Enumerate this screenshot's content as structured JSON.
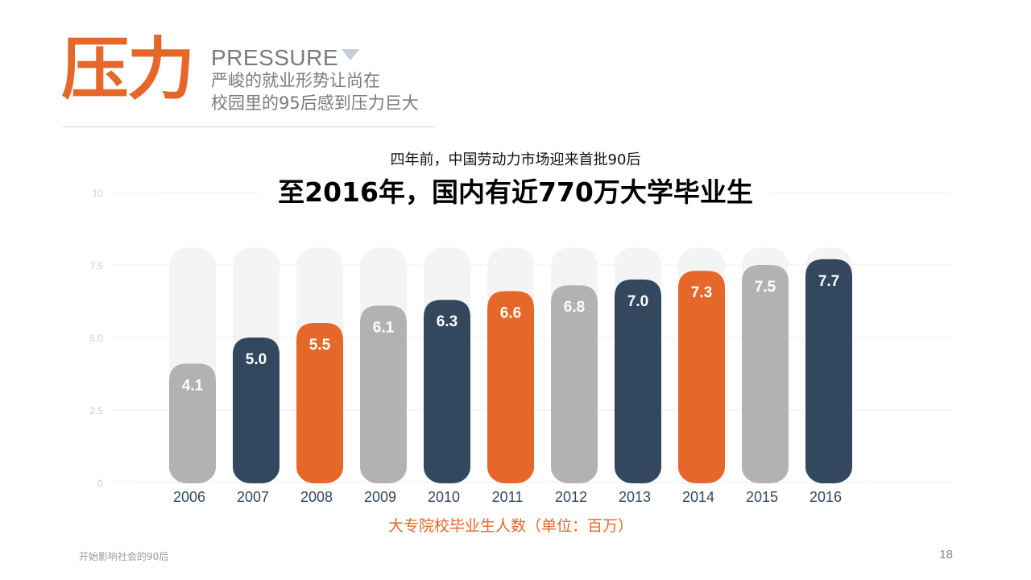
{
  "header": {
    "hero_title": "压力",
    "subtitle_en": "PRESSURE",
    "subtitle_cn_line1": "严峻的就业形势让尚在",
    "subtitle_cn_line2": "校园里的95后感到压力巨大"
  },
  "chart_data": {
    "type": "bar",
    "pretitle": "四年前，中国劳动力市场迎来首批90后",
    "title": "至2016年，国内有近770万大学毕业生",
    "xlabel": "大专院校毕业生人数（单位：百万）",
    "ylabel": "",
    "ylim": [
      0,
      10
    ],
    "yticks": [
      "0",
      "2.5",
      "5.0",
      "7.5",
      "10"
    ],
    "categories": [
      "2006",
      "2007",
      "2008",
      "2009",
      "2010",
      "2011",
      "2012",
      "2013",
      "2014",
      "2015",
      "2016"
    ],
    "values": [
      4.1,
      5.0,
      5.5,
      6.1,
      6.3,
      6.6,
      6.8,
      7.0,
      7.3,
      7.5,
      7.7
    ],
    "value_labels": [
      "4.1",
      "5.0",
      "5.5",
      "6.1",
      "6.3",
      "6.6",
      "6.8",
      "7.0",
      "7.3",
      "7.5",
      "7.7"
    ],
    "bar_colors": [
      "#b2b2b2",
      "#33485e",
      "#e5682a",
      "#b2b2b2",
      "#33485e",
      "#e5682a",
      "#b2b2b2",
      "#33485e",
      "#e5682a",
      "#b2b2b2",
      "#33485e"
    ],
    "background_bar_color": "#f4f4f4",
    "grid": true,
    "grid_color": "#e6e6e6",
    "xlabel_color": "#e5682a",
    "tick_color": "#cfcfcf",
    "category_label_color": "#33485e"
  },
  "footer": {
    "left_text": "开始影响社会的90后",
    "page_number": "18"
  }
}
